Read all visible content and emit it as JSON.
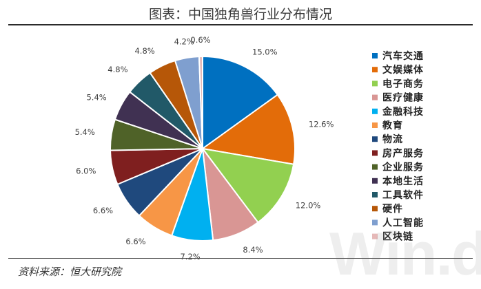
{
  "title": "图表：中国独角兽行业分布情况",
  "source": "资料来源：恒大研究院",
  "watermark": "Win.d",
  "chart_data": {
    "type": "pie",
    "slices": [
      {
        "label": "汽车交通",
        "value": 15.0,
        "value_label": "15.0%",
        "color": "#0070C0"
      },
      {
        "label": "文娱媒体",
        "value": 12.6,
        "value_label": "12.6%",
        "color": "#E36C09"
      },
      {
        "label": "电子商务",
        "value": 12.0,
        "value_label": "12.0%",
        "color": "#92D050"
      },
      {
        "label": "医疗健康",
        "value": 8.4,
        "value_label": "8.4%",
        "color": "#D99694"
      },
      {
        "label": "金融科技",
        "value": 7.2,
        "value_label": "7.2%",
        "color": "#00B0F0"
      },
      {
        "label": "教育",
        "value": 6.6,
        "value_label": "6.6%",
        "color": "#F79646"
      },
      {
        "label": "物流",
        "value": 6.6,
        "value_label": "6.6%",
        "color": "#1F497D"
      },
      {
        "label": "房产服务",
        "value": 6.0,
        "value_label": "6.0%",
        "color": "#7F1F1F"
      },
      {
        "label": "企业服务",
        "value": 5.4,
        "value_label": "5.4%",
        "color": "#4F6228"
      },
      {
        "label": "本地生活",
        "value": 5.4,
        "value_label": "5.4%",
        "color": "#403152"
      },
      {
        "label": "工具软件",
        "value": 4.8,
        "value_label": "4.8%",
        "color": "#215968"
      },
      {
        "label": "硬件",
        "value": 4.8,
        "value_label": "4.8%",
        "color": "#B65708"
      },
      {
        "label": "人工智能",
        "value": 4.2,
        "value_label": "4.2%",
        "color": "#7F9FCF"
      },
      {
        "label": "区块链",
        "value": 0.6,
        "value_label": "0.6%",
        "color": "#E6B9B8"
      }
    ],
    "start_angle_deg": 0,
    "direction": "clockwise",
    "legend_position": "right"
  }
}
